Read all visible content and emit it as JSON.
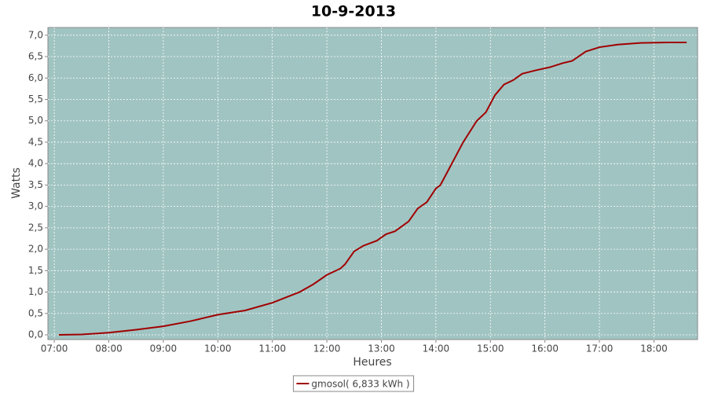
{
  "chart_data": {
    "type": "line",
    "title": "10-9-2013",
    "x_label": "Heures",
    "y_label": "Watts",
    "x": [
      "07:05",
      "07:30",
      "08:00",
      "08:30",
      "09:00",
      "09:30",
      "10:00",
      "10:30",
      "11:00",
      "11:30",
      "11:45",
      "12:00",
      "12:15",
      "12:20",
      "12:30",
      "12:40",
      "12:55",
      "13:05",
      "13:15",
      "13:30",
      "13:40",
      "13:50",
      "14:00",
      "14:05",
      "14:15",
      "14:30",
      "14:45",
      "14:55",
      "15:05",
      "15:15",
      "15:25",
      "15:35",
      "15:50",
      "16:05",
      "16:20",
      "16:30",
      "16:45",
      "17:00",
      "17:20",
      "17:45",
      "18:15",
      "18:36"
    ],
    "series": [
      {
        "name": "gmosol( 6,833 kWh )",
        "color": "#a00000",
        "values": [
          0.0,
          0.01,
          0.05,
          0.12,
          0.2,
          0.32,
          0.47,
          0.57,
          0.75,
          1.0,
          1.18,
          1.4,
          1.55,
          1.65,
          1.95,
          2.08,
          2.2,
          2.35,
          2.42,
          2.65,
          2.95,
          3.1,
          3.42,
          3.5,
          3.9,
          4.5,
          5.0,
          5.2,
          5.6,
          5.85,
          5.95,
          6.1,
          6.18,
          6.25,
          6.35,
          6.4,
          6.62,
          6.72,
          6.78,
          6.82,
          6.83,
          6.83
        ]
      }
    ],
    "xlim": [
      "06:53",
      "18:48"
    ],
    "xticks": [
      "07:00",
      "08:00",
      "09:00",
      "10:00",
      "11:00",
      "12:00",
      "13:00",
      "14:00",
      "15:00",
      "16:00",
      "17:00",
      "18:00"
    ],
    "ylim": [
      -0.11,
      7.18
    ],
    "yticks": [
      {
        "value": 0,
        "label": "0,0"
      },
      {
        "value": 0.5,
        "label": "0,5"
      },
      {
        "value": 1,
        "label": "1,0"
      },
      {
        "value": 1.5,
        "label": "1,5"
      },
      {
        "value": 2,
        "label": "2,0"
      },
      {
        "value": 2.5,
        "label": "2,5"
      },
      {
        "value": 3,
        "label": "3,0"
      },
      {
        "value": 3.5,
        "label": "3,5"
      },
      {
        "value": 4,
        "label": "4,0"
      },
      {
        "value": 4.5,
        "label": "4,5"
      },
      {
        "value": 5,
        "label": "5,0"
      },
      {
        "value": 5.5,
        "label": "5,5"
      },
      {
        "value": 6,
        "label": "6,0"
      },
      {
        "value": 6.5,
        "label": "6,5"
      },
      {
        "value": 7,
        "label": "7,0"
      }
    ],
    "grid": true,
    "plot_background": "#a0c4c2"
  }
}
